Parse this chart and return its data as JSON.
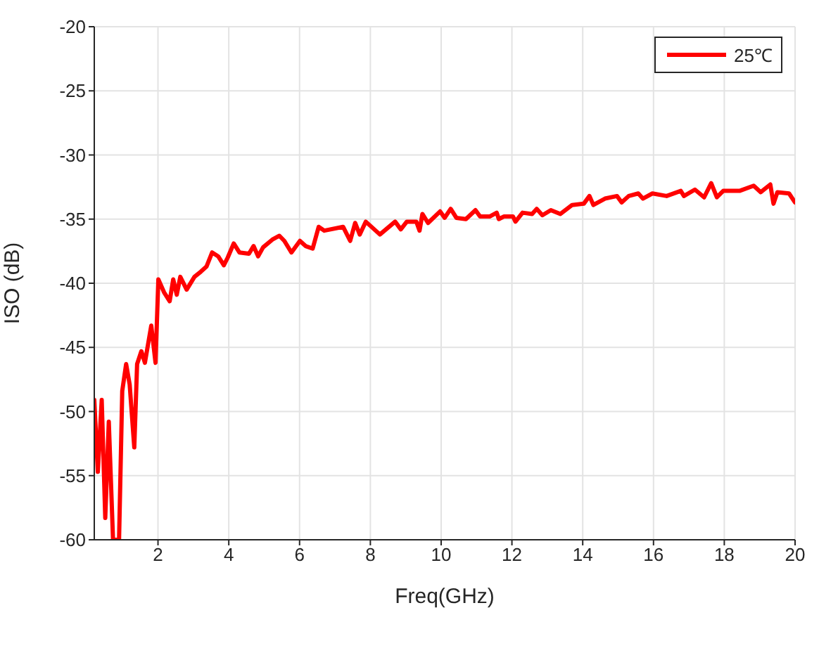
{
  "chart_data": {
    "type": "line",
    "xlabel": "Freq(GHz)",
    "ylabel": "ISO (dB)",
    "xlim": [
      0.2,
      20
    ],
    "xticks": [
      2,
      4,
      6,
      8,
      10,
      12,
      14,
      16,
      18,
      20
    ],
    "ylim": [
      -60,
      -20
    ],
    "yticks": [
      -60,
      -55,
      -50,
      -45,
      -40,
      -35,
      -30,
      -25,
      -20
    ],
    "grid": true,
    "legend": "top right",
    "line_style": "solid",
    "marker": "none",
    "series": [
      {
        "name": "25℃",
        "color": "#ff0000",
        "x": [
          0.2,
          0.3,
          0.41,
          0.51,
          0.61,
          0.73,
          0.9,
          0.99,
          1.1,
          1.2,
          1.33,
          1.41,
          1.53,
          1.63,
          1.81,
          1.93,
          2.01,
          2.17,
          2.33,
          2.43,
          2.53,
          2.63,
          2.81,
          3.03,
          3.21,
          3.37,
          3.53,
          3.7,
          3.86,
          3.97,
          4.14,
          4.3,
          4.57,
          4.7,
          4.83,
          4.97,
          5.23,
          5.43,
          5.57,
          5.77,
          6.01,
          6.17,
          6.37,
          6.54,
          6.7,
          7.23,
          7.43,
          7.57,
          7.7,
          7.87,
          8.27,
          8.7,
          8.86,
          9.03,
          9.3,
          9.39,
          9.47,
          9.63,
          9.97,
          10.1,
          10.27,
          10.43,
          10.7,
          10.97,
          11.1,
          11.37,
          11.57,
          11.63,
          11.77,
          12.03,
          12.1,
          12.3,
          12.57,
          12.7,
          12.86,
          13.1,
          13.37,
          13.7,
          14.03,
          14.19,
          14.3,
          14.63,
          14.97,
          15.1,
          15.3,
          15.57,
          15.7,
          15.97,
          16.37,
          16.77,
          16.86,
          17.17,
          17.43,
          17.63,
          17.79,
          17.97,
          18.43,
          18.83,
          19.03,
          19.3,
          19.39,
          19.5,
          19.83,
          20
        ],
        "values": [
          -49.1,
          -54.7,
          -49.1,
          -58.3,
          -50.8,
          -60,
          -60,
          -48.4,
          -46.3,
          -47.9,
          -52.8,
          -46.3,
          -45.3,
          -46.2,
          -43.3,
          -46.2,
          -39.7,
          -40.7,
          -41.4,
          -39.7,
          -40.9,
          -39.5,
          -40.5,
          -39.5,
          -39.1,
          -38.7,
          -37.6,
          -37.9,
          -38.6,
          -38,
          -36.9,
          -37.6,
          -37.7,
          -37.1,
          -37.9,
          -37.2,
          -36.6,
          -36.3,
          -36.7,
          -37.6,
          -36.7,
          -37.1,
          -37.3,
          -35.6,
          -35.9,
          -35.6,
          -36.7,
          -35.3,
          -36.2,
          -35.2,
          -36.2,
          -35.2,
          -35.8,
          -35.2,
          -35.2,
          -35.9,
          -34.6,
          -35.3,
          -34.4,
          -34.9,
          -34.2,
          -34.9,
          -35,
          -34.3,
          -34.8,
          -34.8,
          -34.5,
          -35,
          -34.8,
          -34.8,
          -35.2,
          -34.5,
          -34.6,
          -34.2,
          -34.7,
          -34.3,
          -34.6,
          -33.9,
          -33.8,
          -33.2,
          -33.9,
          -33.4,
          -33.2,
          -33.7,
          -33.2,
          -33,
          -33.4,
          -33,
          -33.2,
          -32.8,
          -33.2,
          -32.7,
          -33.3,
          -32.2,
          -33.3,
          -32.8,
          -32.8,
          -32.4,
          -32.9,
          -32.3,
          -33.8,
          -32.9,
          -33,
          -33.7
        ]
      }
    ]
  }
}
